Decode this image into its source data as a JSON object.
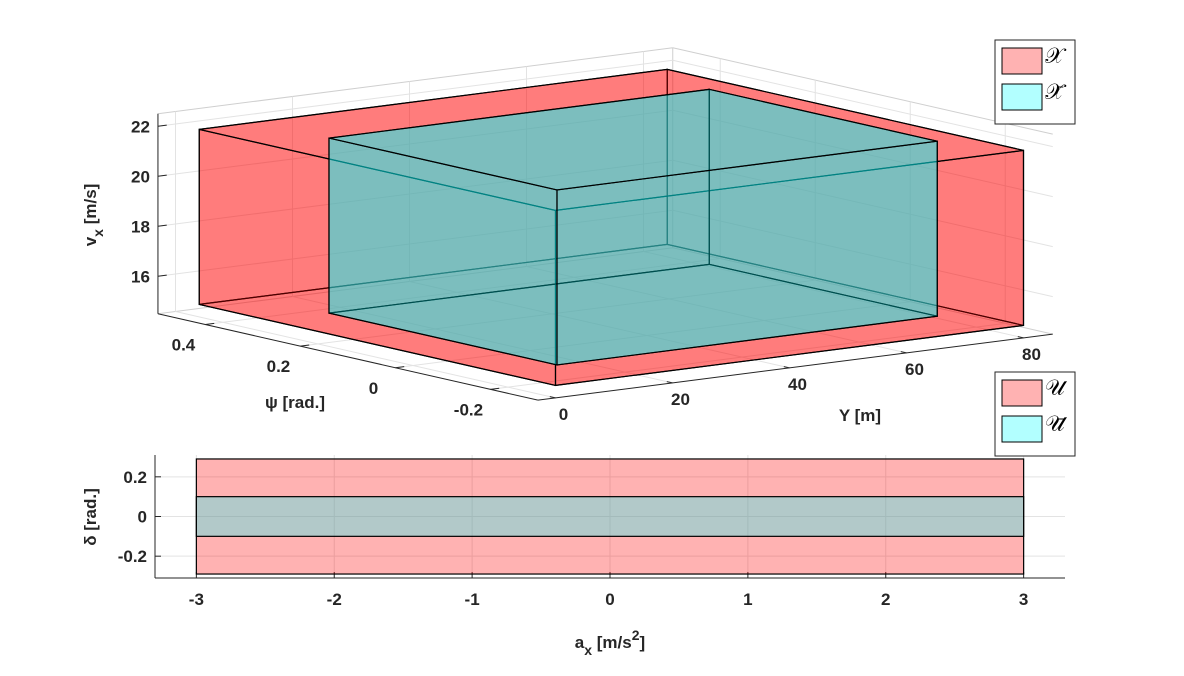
{
  "chart_data": [
    {
      "type": "box3d",
      "xlabel": "Y [m]",
      "ylabel": "ψ [rad.]",
      "zlabel": {
        "base": "v",
        "sub": "x",
        "rest": " [m/s]"
      },
      "xlim": [
        -3,
        85
      ],
      "xticks": [
        0,
        20,
        40,
        60,
        80
      ],
      "ylim": [
        -0.3,
        0.5
      ],
      "yticks": [
        -0.2,
        0,
        0.2,
        0.4
      ],
      "zlim": [
        14.5,
        22.5
      ],
      "zticks": [
        16,
        18,
        20,
        22
      ],
      "grid": true,
      "legend": "northeast",
      "face_alpha": 0.3,
      "series": [
        {
          "name": "𝒳",
          "color": "#ff0000",
          "x": [
            0,
            80
          ],
          "y": [
            -0.3,
            0.45
          ],
          "z": [
            15,
            22
          ]
        },
        {
          "name": "𝒳̄",
          "color": "#00ffff",
          "x": [
            10,
            75
          ],
          "y": [
            -0.18,
            0.3
          ],
          "z": [
            15,
            22
          ]
        }
      ]
    },
    {
      "type": "box2d",
      "xlabel": {
        "base": "a",
        "sub": "x",
        "rest": " [m/s",
        "sup": "2",
        "end": "]"
      },
      "ylabel": "δ [rad.]",
      "xlim": [
        -3.3,
        3.3
      ],
      "xticks": [
        -3,
        -2,
        -1,
        0,
        1,
        2,
        3
      ],
      "ylim": [
        -0.31,
        0.31
      ],
      "yticks": [
        -0.2,
        0,
        0.2
      ],
      "grid": true,
      "legend": "northeast",
      "face_alpha": 0.3,
      "series": [
        {
          "name": "𝒰",
          "color": "#ff0000",
          "x": [
            -3,
            3
          ],
          "y": [
            -0.29,
            0.29
          ]
        },
        {
          "name": "𝒰̄",
          "color": "#00ffff",
          "x": [
            -3,
            3
          ],
          "y": [
            -0.1,
            0.1
          ]
        }
      ]
    }
  ]
}
